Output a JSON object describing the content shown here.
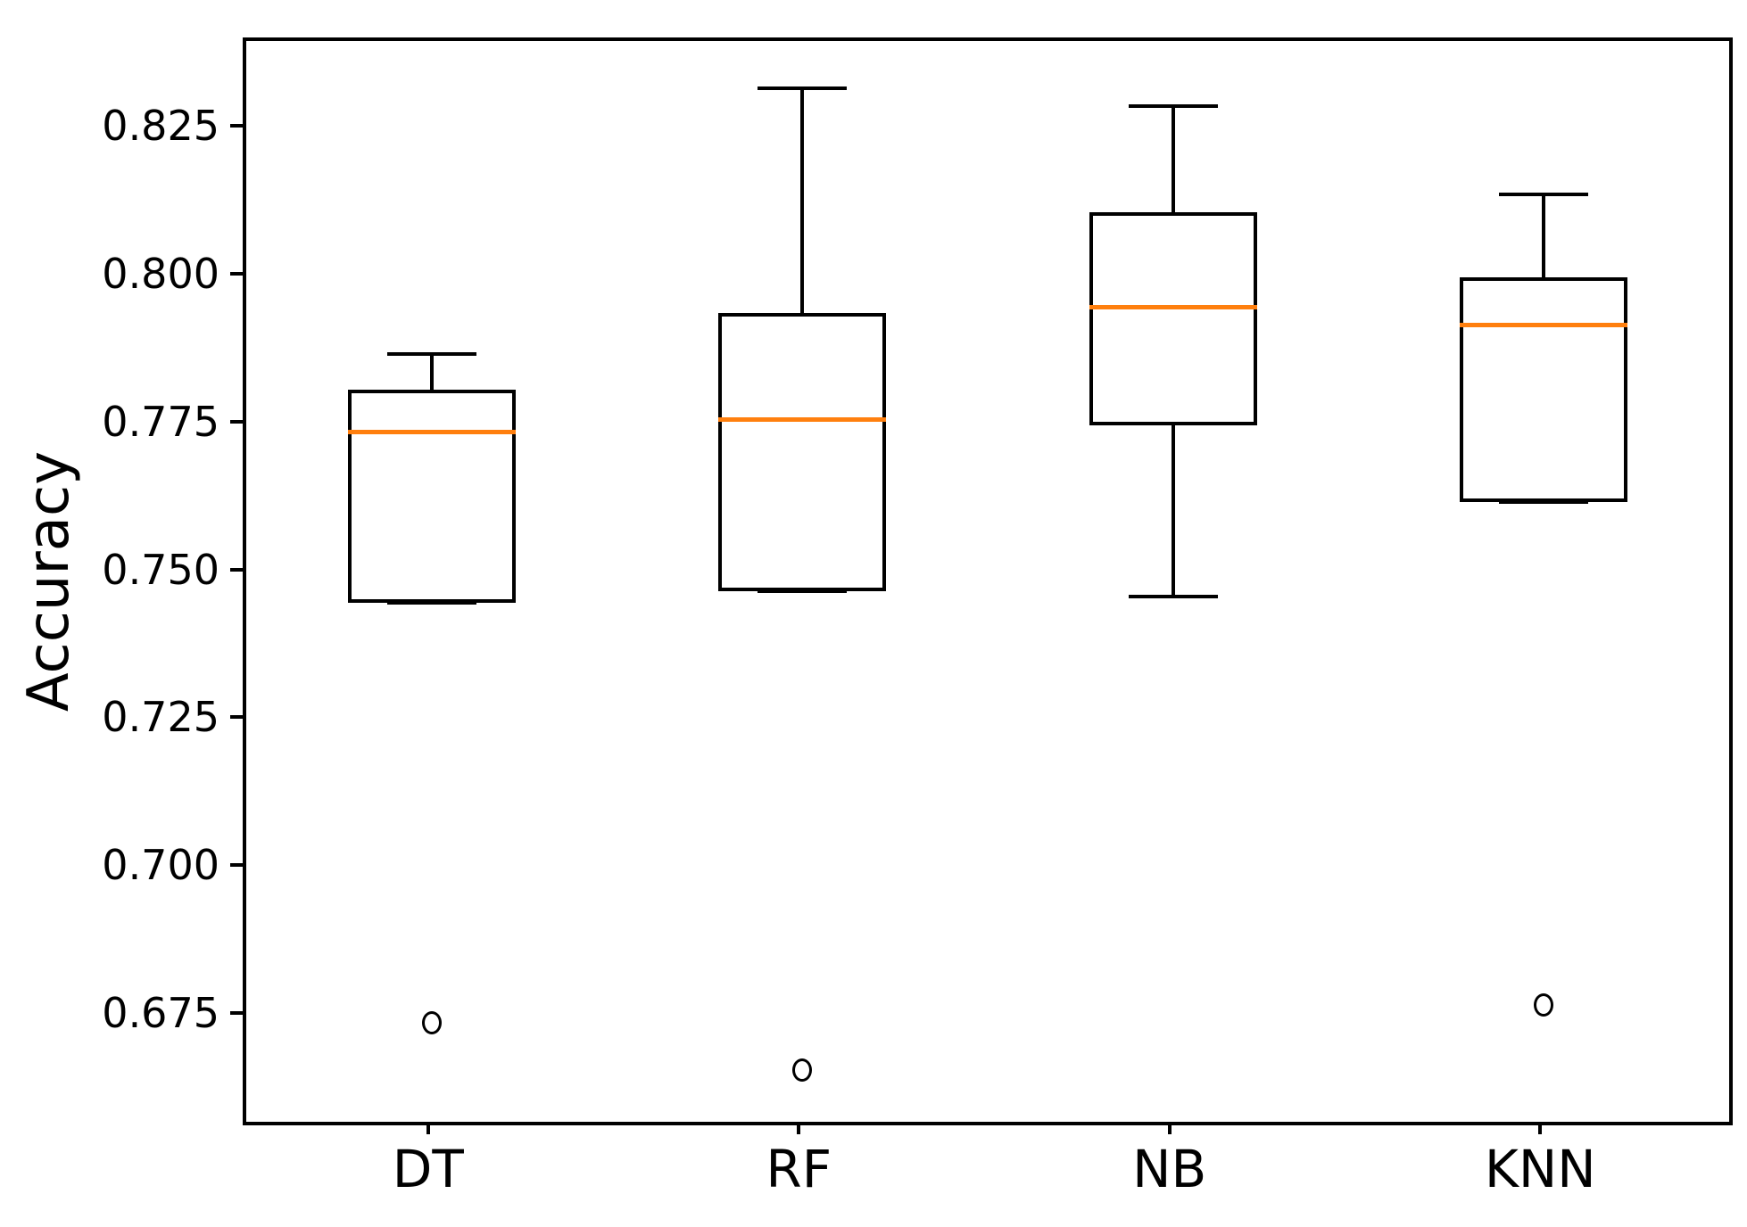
{
  "figure": {
    "background": "#ffffff"
  },
  "chart_data": {
    "type": "boxplot",
    "title": "",
    "ylabel": "Accuracy",
    "xlabel": "",
    "categories": [
      "DT",
      "RF",
      "NB",
      "KNN"
    ],
    "ylim": [
      0.6572,
      0.84
    ],
    "grid": false,
    "legend": null,
    "yticks": [
      {
        "value": 0.825,
        "label": "0.825"
      },
      {
        "value": 0.8,
        "label": "0.800"
      },
      {
        "value": 0.775,
        "label": "0.775"
      },
      {
        "value": 0.75,
        "label": "0.750"
      },
      {
        "value": 0.725,
        "label": "0.725"
      },
      {
        "value": 0.7,
        "label": "0.700"
      },
      {
        "value": 0.675,
        "label": "0.675"
      }
    ],
    "series": [
      {
        "name": "DT",
        "whisker_low": 0.745,
        "q1": 0.745,
        "median": 0.774,
        "q3": 0.781,
        "whisker_high": 0.787,
        "outliers": [
          0.674
        ]
      },
      {
        "name": "RF",
        "whisker_low": 0.747,
        "q1": 0.747,
        "median": 0.776,
        "q3": 0.794,
        "whisker_high": 0.832,
        "outliers": [
          0.666
        ]
      },
      {
        "name": "NB",
        "whisker_low": 0.746,
        "q1": 0.775,
        "median": 0.795,
        "q3": 0.811,
        "whisker_high": 0.829,
        "outliers": []
      },
      {
        "name": "KNN",
        "whisker_low": 0.762,
        "q1": 0.762,
        "median": 0.792,
        "q3": 0.8,
        "whisker_high": 0.814,
        "outliers": [
          0.677
        ]
      }
    ],
    "colors": {
      "box_edge": "#000000",
      "median": "#ff7f0e",
      "background": "#ffffff"
    }
  }
}
